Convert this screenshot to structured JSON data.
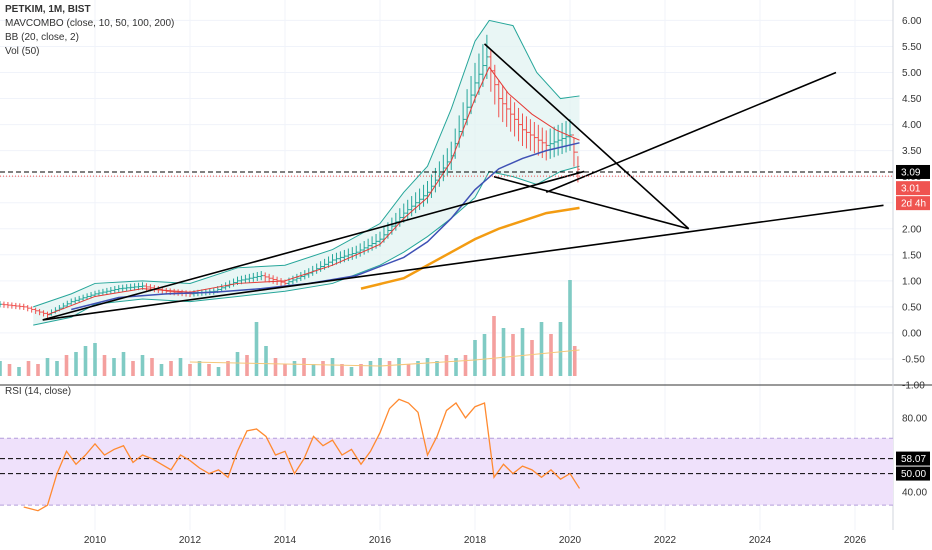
{
  "symbol": "PETKIM, 1M, BIST",
  "indicators": [
    "MAVCOMBO (close, 10, 50, 100, 200)",
    "BB (20, close, 2)",
    "Vol (50)"
  ],
  "rsi_title": "RSI (14, close)",
  "colors": {
    "up": "#26a69a",
    "down": "#ef5350",
    "ma_fast": "#e53935",
    "ma_mid": "#3f51b5",
    "ma_slow": "#f39c12",
    "ma_dark": "#8d2a2a",
    "bb": "#26a69a",
    "bb_fill": "#e0f2f1",
    "rsi": "#ff8a30",
    "rsi_band": "#efe1fb",
    "trend": "#000000"
  },
  "price_tags": {
    "last": "3.09",
    "current": "3.01",
    "countdown": "2d 4h"
  },
  "rsi_tags": {
    "upper": "58.07",
    "lower": "50.00"
  },
  "chart_data": [
    {
      "type": "line",
      "title": "PETKIM, 1M, BIST",
      "x_ticks": [
        "2010",
        "2012",
        "2014",
        "2016",
        "2018",
        "2020",
        "2022",
        "2024",
        "2026"
      ],
      "x_tick_years": [
        2010,
        2012,
        2014,
        2016,
        2018,
        2020,
        2022,
        2024,
        2026
      ],
      "xlim": [
        2008.0,
        2026.8
      ],
      "y_ticks": [
        "6.00",
        "5.50",
        "5.00",
        "4.50",
        "4.00",
        "3.50",
        "3.00",
        "2.50",
        "2.00",
        "1.50",
        "1.00",
        "0.50",
        "0.00",
        "-0.50",
        "-1.00"
      ],
      "ylim": [
        -1.0,
        6.2
      ],
      "series": [
        {
          "x": [
            2008.0,
            2008.5,
            2009.0,
            2009.5,
            2010.0,
            2010.5,
            2011.0,
            2011.5,
            2012.0,
            2012.5,
            2013.0,
            2013.5,
            2014.0,
            2014.5,
            2015.0,
            2015.5,
            2016.0,
            2016.5,
            2017.0,
            2017.5,
            2018.0,
            2018.25,
            2018.5,
            2019.0,
            2019.5,
            2020.0,
            2020.2
          ],
          "y": [
            0.55,
            0.5,
            0.35,
            0.6,
            0.75,
            0.85,
            0.9,
            0.8,
            0.75,
            0.8,
            1.0,
            1.1,
            0.95,
            1.15,
            1.4,
            1.55,
            1.8,
            2.3,
            2.7,
            3.4,
            4.8,
            5.3,
            4.5,
            3.9,
            3.6,
            3.8,
            3.01
          ]
        },
        {
          "name": "BB upper",
          "x": [
            2008.7,
            2009.5,
            2010.0,
            2011.0,
            2012.0,
            2013.0,
            2014.0,
            2015.0,
            2016.0,
            2016.5,
            2017.0,
            2017.5,
            2018.0,
            2018.3,
            2018.8,
            2019.3,
            2019.8,
            2020.2
          ],
          "y": [
            0.5,
            0.75,
            0.95,
            1.0,
            0.95,
            1.25,
            1.3,
            1.6,
            2.1,
            2.7,
            3.2,
            4.3,
            5.6,
            6.0,
            5.9,
            5.0,
            4.5,
            4.55
          ]
        },
        {
          "name": "BB lower",
          "x": [
            2008.7,
            2009.5,
            2010.0,
            2011.0,
            2012.0,
            2013.0,
            2014.0,
            2015.0,
            2016.0,
            2016.5,
            2017.0,
            2017.5,
            2018.0,
            2018.3,
            2018.8,
            2019.3,
            2019.8,
            2020.2
          ],
          "y": [
            0.15,
            0.3,
            0.55,
            0.65,
            0.6,
            0.7,
            0.8,
            0.95,
            1.3,
            1.55,
            1.85,
            2.2,
            2.6,
            3.1,
            3.0,
            2.85,
            3.1,
            3.2
          ]
        },
        {
          "name": "MA 10",
          "x": [
            2009.0,
            2010.0,
            2011.0,
            2012.0,
            2013.0,
            2014.0,
            2015.0,
            2016.0,
            2016.5,
            2017.0,
            2017.5,
            2018.0,
            2018.3,
            2018.7,
            2019.2,
            2019.7,
            2020.2
          ],
          "y": [
            0.35,
            0.7,
            0.85,
            0.78,
            0.95,
            1.0,
            1.3,
            1.7,
            2.2,
            2.6,
            3.3,
            4.5,
            5.1,
            4.6,
            4.2,
            3.9,
            3.7
          ]
        },
        {
          "name": "MA 50",
          "x": [
            2009.5,
            2010.5,
            2011.5,
            2012.5,
            2013.5,
            2014.5,
            2015.5,
            2016.5,
            2017.0,
            2017.5,
            2018.0,
            2018.5,
            2019.0,
            2019.5,
            2020.2
          ],
          "y": [
            0.45,
            0.68,
            0.75,
            0.78,
            0.85,
            0.95,
            1.1,
            1.45,
            1.75,
            2.2,
            2.75,
            3.15,
            3.35,
            3.5,
            3.65
          ]
        },
        {
          "name": "MA 100",
          "x": [
            2015.6,
            2016.5,
            2017.0,
            2017.5,
            2018.0,
            2018.5,
            2019.0,
            2019.5,
            2020.2
          ],
          "y": [
            0.85,
            1.05,
            1.3,
            1.55,
            1.8,
            2.0,
            2.15,
            2.3,
            2.4
          ]
        },
        {
          "name": "Trend 1",
          "x": [
            2008.9,
            2020.3
          ],
          "y": [
            0.25,
            3.1
          ]
        },
        {
          "name": "Trend 2",
          "x": [
            2008.9,
            2026.6
          ],
          "y": [
            0.25,
            2.45
          ]
        },
        {
          "name": "Trend 3",
          "x": [
            2018.2,
            2022.5
          ],
          "y": [
            5.55,
            2.0
          ]
        },
        {
          "name": "Trend 4",
          "x": [
            2018.4,
            2022.5
          ],
          "y": [
            3.0,
            2.0
          ]
        },
        {
          "name": "Trend 5",
          "x": [
            2019.5,
            2025.6
          ],
          "y": [
            2.7,
            5.0
          ]
        }
      ],
      "levels": [
        3.09,
        3.01
      ]
    },
    {
      "type": "bar",
      "title": "Vol (50)",
      "x": [
        2008.0,
        2008.2,
        2008.4,
        2008.6,
        2008.8,
        2009.0,
        2009.2,
        2009.4,
        2009.6,
        2009.8,
        2010.0,
        2010.2,
        2010.4,
        2010.6,
        2010.8,
        2011.0,
        2011.2,
        2011.4,
        2011.6,
        2011.8,
        2012.0,
        2012.2,
        2012.4,
        2012.6,
        2012.8,
        2013.0,
        2013.2,
        2013.4,
        2013.6,
        2013.8,
        2014.0,
        2014.2,
        2014.4,
        2014.6,
        2014.8,
        2015.0,
        2015.2,
        2015.4,
        2015.6,
        2015.8,
        2016.0,
        2016.2,
        2016.4,
        2016.6,
        2016.8,
        2017.0,
        2017.2,
        2017.4,
        2017.6,
        2017.8,
        2018.0,
        2018.2,
        2018.4,
        2018.6,
        2018.8,
        2019.0,
        2019.2,
        2019.4,
        2019.6,
        2019.8,
        2020.0,
        2020.1
      ],
      "values": [
        0.25,
        0.2,
        0.15,
        0.25,
        0.2,
        0.3,
        0.25,
        0.35,
        0.4,
        0.5,
        0.55,
        0.35,
        0.3,
        0.4,
        0.25,
        0.35,
        0.3,
        0.2,
        0.25,
        0.3,
        0.2,
        0.25,
        0.2,
        0.15,
        0.25,
        0.4,
        0.35,
        0.9,
        0.5,
        0.3,
        0.2,
        0.25,
        0.3,
        0.2,
        0.25,
        0.3,
        0.2,
        0.15,
        0.2,
        0.25,
        0.3,
        0.25,
        0.3,
        0.2,
        0.25,
        0.3,
        0.25,
        0.35,
        0.3,
        0.35,
        0.6,
        0.7,
        1.0,
        0.8,
        0.7,
        0.8,
        0.6,
        0.9,
        0.7,
        0.9,
        1.6,
        0.5
      ],
      "up": [
        true,
        false,
        true,
        false,
        false,
        true,
        true,
        false,
        true,
        true,
        true,
        false,
        true,
        true,
        false,
        true,
        false,
        true,
        false,
        true,
        false,
        true,
        false,
        true,
        false,
        true,
        false,
        true,
        true,
        false,
        false,
        true,
        false,
        true,
        false,
        true,
        false,
        true,
        false,
        true,
        true,
        false,
        true,
        false,
        true,
        true,
        true,
        false,
        true,
        false,
        true,
        true,
        false,
        true,
        false,
        true,
        false,
        true,
        false,
        true,
        true,
        false
      ]
    },
    {
      "type": "line",
      "title": "RSI (14, close)",
      "y_ticks": [
        "80.00",
        "40.00"
      ],
      "ylim": [
        25,
        95
      ],
      "band": [
        33,
        69
      ],
      "levels": [
        58.07,
        50.0
      ],
      "x": [
        2008.5,
        2008.8,
        2009.0,
        2009.2,
        2009.4,
        2009.6,
        2009.8,
        2010.0,
        2010.2,
        2010.4,
        2010.6,
        2010.8,
        2011.0,
        2011.2,
        2011.4,
        2011.6,
        2011.8,
        2012.0,
        2012.2,
        2012.4,
        2012.6,
        2012.8,
        2013.0,
        2013.2,
        2013.4,
        2013.6,
        2013.8,
        2014.0,
        2014.2,
        2014.4,
        2014.6,
        2014.8,
        2015.0,
        2015.2,
        2015.4,
        2015.6,
        2015.8,
        2016.0,
        2016.2,
        2016.4,
        2016.6,
        2016.8,
        2017.0,
        2017.2,
        2017.4,
        2017.6,
        2017.8,
        2018.0,
        2018.2,
        2018.4,
        2018.6,
        2018.8,
        2019.0,
        2019.2,
        2019.4,
        2019.6,
        2019.8,
        2020.0,
        2020.2
      ],
      "values": [
        32,
        30,
        33,
        50,
        62,
        55,
        60,
        66,
        60,
        63,
        65,
        56,
        60,
        58,
        55,
        52,
        60,
        57,
        53,
        50,
        52,
        48,
        62,
        73,
        74,
        70,
        60,
        62,
        50,
        58,
        70,
        65,
        68,
        60,
        63,
        55,
        62,
        72,
        85,
        90,
        88,
        83,
        60,
        70,
        84,
        88,
        80,
        86,
        88,
        48,
        55,
        50,
        54,
        52,
        48,
        52,
        47,
        50,
        42
      ]
    }
  ]
}
